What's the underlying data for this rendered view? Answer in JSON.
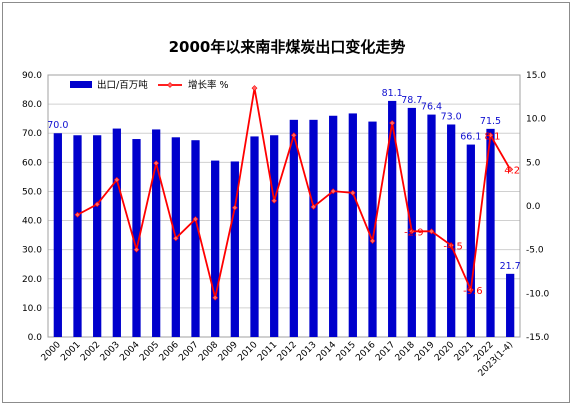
{
  "title": "2000年以来南非煤炭出口变化走势",
  "chart_data": {
    "type": "bar+line",
    "title": "2000年以来南非煤炭出口变化走势",
    "categories": [
      "2000",
      "2001",
      "2002",
      "2003",
      "2004",
      "2005",
      "2006",
      "2007",
      "2008",
      "2009",
      "2010",
      "2011",
      "2012",
      "2013",
      "2014",
      "2015",
      "2016",
      "2017",
      "2018",
      "2019",
      "2020",
      "2021",
      "2022",
      "2023(1-4)"
    ],
    "series": [
      {
        "name": "出口/百万吨",
        "axis": "left",
        "type": "bar",
        "color": "#0000cc",
        "values": [
          70.0,
          69.3,
          69.3,
          71.6,
          68.0,
          71.3,
          68.6,
          67.6,
          60.6,
          60.3,
          68.9,
          69.3,
          74.6,
          74.6,
          76.0,
          76.8,
          74.0,
          81.1,
          78.7,
          76.4,
          73.0,
          66.1,
          71.5,
          21.7
        ]
      },
      {
        "name": "增长率 %",
        "axis": "right",
        "type": "line",
        "color": "#ff0000",
        "values": [
          null,
          -1.0,
          0.2,
          3.0,
          -5.0,
          4.9,
          -3.7,
          -1.5,
          -10.5,
          -0.2,
          13.5,
          0.6,
          8.1,
          -0.1,
          1.7,
          1.5,
          -4.0,
          9.5,
          -2.9,
          -2.9,
          -4.5,
          -9.6,
          8.1,
          4.2
        ]
      }
    ],
    "bar_labels": [
      {
        "index": 0,
        "text": "70.0"
      },
      {
        "index": 17,
        "text": "81.1"
      },
      {
        "index": 18,
        "text": "78.7"
      },
      {
        "index": 19,
        "text": "76.4"
      },
      {
        "index": 20,
        "text": "73.0"
      },
      {
        "index": 21,
        "text": "66.1"
      },
      {
        "index": 22,
        "text": "71.5"
      },
      {
        "index": 23,
        "text": "21.7"
      }
    ],
    "rate_labels": [
      {
        "index": 18,
        "text": "-2.9"
      },
      {
        "index": 20,
        "text": "-4.5"
      },
      {
        "index": 21,
        "text": "-9.6"
      },
      {
        "index": 22,
        "text": "8.1"
      },
      {
        "index": 23,
        "text": "4.2"
      }
    ],
    "y_left": {
      "min": 0,
      "max": 90,
      "step": 10,
      "ticks": [
        "0.0",
        "10.0",
        "20.0",
        "30.0",
        "40.0",
        "50.0",
        "60.0",
        "70.0",
        "80.0",
        "90.0"
      ]
    },
    "y_right": {
      "min": -15,
      "max": 15,
      "step": 5,
      "ticks": [
        "-15.0",
        "-10.0",
        "-5.0",
        "0.0",
        "5.0",
        "10.0",
        "15.0"
      ]
    },
    "grid": true,
    "legend_position": "top-left"
  }
}
